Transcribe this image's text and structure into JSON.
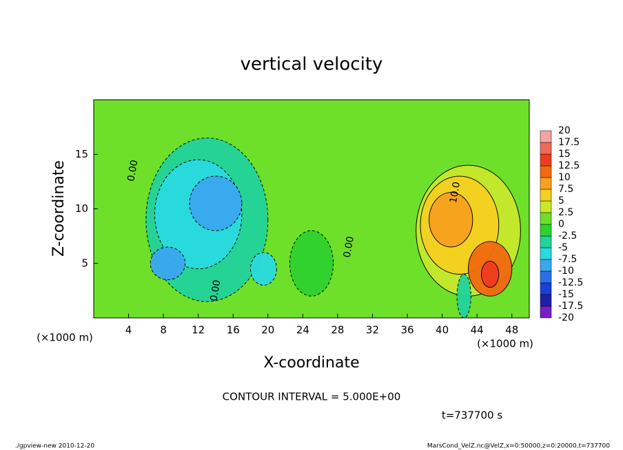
{
  "chart_data": {
    "type": "contour",
    "title": "vertical velocity",
    "x_label": "X-coordinate",
    "y_label": "Z-coordinate",
    "x_unit_label": "(×1000 m)",
    "xlim": [
      0,
      50
    ],
    "ylim": [
      0,
      20
    ],
    "xticks": [
      4,
      8,
      12,
      16,
      20,
      24,
      28,
      32,
      36,
      40,
      44,
      48
    ],
    "yticks": [
      5,
      10,
      15
    ],
    "levels": [
      -20,
      -17.5,
      -15,
      -12.5,
      -10,
      -7.5,
      -5,
      -2.5,
      0,
      2.5,
      5,
      7.5,
      10,
      12.5,
      15,
      17.5,
      20
    ],
    "colors": [
      "#7a1ec8",
      "#2020a8",
      "#1b3fd8",
      "#2b70e8",
      "#3aa8f0",
      "#2adbe0",
      "#22d39a",
      "#2ed22e",
      "#6ee02a",
      "#c8e82a",
      "#f5d020",
      "#f7a21e",
      "#f26a10",
      "#f03c1e",
      "#f06a5a",
      "#f5a3a3"
    ],
    "cells": [
      {
        "x": 13,
        "z": 9,
        "rx": 7,
        "rz": 7.5,
        "value": -3
      },
      {
        "x": 12,
        "z": 9.5,
        "rx": 5,
        "rz": 5,
        "value": -6
      },
      {
        "x": 14,
        "z": 10.5,
        "rx": 3,
        "rz": 2.5,
        "value": -9
      },
      {
        "x": 8.5,
        "z": 5,
        "rx": 2,
        "rz": 1.5,
        "value": -9
      },
      {
        "x": 19.5,
        "z": 4.5,
        "rx": 1.5,
        "rz": 1.5,
        "value": -6
      },
      {
        "x": 25,
        "z": 5,
        "rx": 2.5,
        "rz": 3,
        "value": -1
      },
      {
        "x": 43,
        "z": 8,
        "rx": 6,
        "rz": 6,
        "value": 3
      },
      {
        "x": 42,
        "z": 8.5,
        "rx": 4.5,
        "rz": 4.5,
        "value": 6
      },
      {
        "x": 41,
        "z": 9,
        "rx": 2.5,
        "rz": 2.5,
        "value": 9
      },
      {
        "x": 45.5,
        "z": 4.5,
        "rx": 2.5,
        "rz": 2.5,
        "value": 10
      },
      {
        "x": 45.5,
        "z": 4,
        "rx": 1,
        "rz": 1.2,
        "value": 13
      },
      {
        "x": 42.5,
        "z": 2,
        "rx": 0.8,
        "rz": 2,
        "value": -4
      }
    ],
    "contour_labels": [
      {
        "label": "0.00",
        "x": 4.5,
        "z": 13.5
      },
      {
        "label": "0.00",
        "x": 14,
        "z": 2.5
      },
      {
        "label": "0.00",
        "x": 29.3,
        "z": 6.5
      },
      {
        "label": "10.0",
        "x": 41.5,
        "z": 11.5
      }
    ],
    "contour_interval": "CONTOUR INTERVAL = 5.000E+00",
    "time_label": "t=737700 s",
    "footer_left": "./gpview-new  2010-12-20",
    "footer_right": "MarsCond_VelZ.nc@VelZ,x=0:50000,z=0:20000,t=737700"
  }
}
